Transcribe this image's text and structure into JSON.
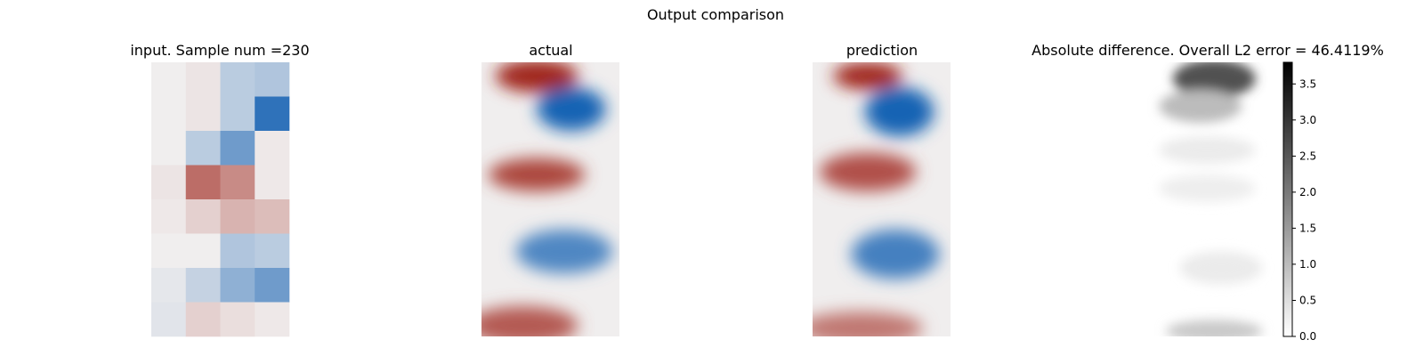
{
  "figure": {
    "suptitle": "Output comparison"
  },
  "chart_data": [
    {
      "type": "heatmap",
      "title": "input. Sample num =230",
      "colormap": "diverging red-white-blue",
      "rows": 8,
      "cols": 4,
      "values": [
        [
          0.0,
          0.05,
          -0.25,
          -0.3
        ],
        [
          0.0,
          0.05,
          -0.25,
          -0.9
        ],
        [
          0.0,
          -0.25,
          -0.6,
          0.03
        ],
        [
          0.05,
          0.65,
          0.5,
          0.03
        ],
        [
          0.03,
          0.15,
          0.3,
          0.25
        ],
        [
          0.0,
          0.0,
          -0.3,
          -0.25
        ],
        [
          -0.05,
          -0.2,
          -0.45,
          -0.6
        ],
        [
          -0.07,
          0.15,
          0.08,
          0.03
        ]
      ]
    },
    {
      "type": "heatmap",
      "title": "actual",
      "colormap": "diverging red-white-blue",
      "blobs": [
        {
          "cx": 0.4,
          "cy": 0.05,
          "rx": 0.3,
          "ry": 0.06,
          "value": 1.0
        },
        {
          "cx": 0.65,
          "cy": 0.17,
          "rx": 0.25,
          "ry": 0.08,
          "value": -1.0
        },
        {
          "cx": 0.4,
          "cy": 0.41,
          "rx": 0.35,
          "ry": 0.06,
          "value": 0.85
        },
        {
          "cx": 0.6,
          "cy": 0.69,
          "rx": 0.35,
          "ry": 0.08,
          "value": -0.75
        },
        {
          "cx": 0.3,
          "cy": 0.96,
          "rx": 0.4,
          "ry": 0.07,
          "value": 0.75
        }
      ]
    },
    {
      "type": "heatmap",
      "title": "prediction",
      "colormap": "diverging red-white-blue",
      "blobs": [
        {
          "cx": 0.4,
          "cy": 0.05,
          "rx": 0.25,
          "ry": 0.05,
          "value": 1.0
        },
        {
          "cx": 0.63,
          "cy": 0.18,
          "rx": 0.25,
          "ry": 0.09,
          "value": -1.0
        },
        {
          "cx": 0.4,
          "cy": 0.4,
          "rx": 0.35,
          "ry": 0.07,
          "value": 0.8
        },
        {
          "cx": 0.6,
          "cy": 0.7,
          "rx": 0.32,
          "ry": 0.09,
          "value": -0.8
        },
        {
          "cx": 0.35,
          "cy": 0.97,
          "rx": 0.45,
          "ry": 0.06,
          "value": 0.6
        }
      ]
    },
    {
      "type": "heatmap",
      "title": "Absolute difference. Overall L2 error = 46.4119%",
      "colormap": "gray_r",
      "vmin": 0.0,
      "vmax": 3.8,
      "colorbar_ticks": [
        "0.0",
        "0.5",
        "1.0",
        "1.5",
        "2.0",
        "2.5",
        "3.0",
        "3.5"
      ],
      "blobs": [
        {
          "cx": 0.55,
          "cy": 0.06,
          "rx": 0.3,
          "ry": 0.07,
          "value": 2.6
        },
        {
          "cx": 0.45,
          "cy": 0.16,
          "rx": 0.3,
          "ry": 0.06,
          "value": 1.0
        },
        {
          "cx": 0.5,
          "cy": 0.32,
          "rx": 0.35,
          "ry": 0.05,
          "value": 0.3
        },
        {
          "cx": 0.5,
          "cy": 0.46,
          "rx": 0.35,
          "ry": 0.05,
          "value": 0.25
        },
        {
          "cx": 0.6,
          "cy": 0.75,
          "rx": 0.3,
          "ry": 0.06,
          "value": 0.3
        },
        {
          "cx": 0.55,
          "cy": 0.98,
          "rx": 0.35,
          "ry": 0.04,
          "value": 0.8
        }
      ]
    }
  ]
}
